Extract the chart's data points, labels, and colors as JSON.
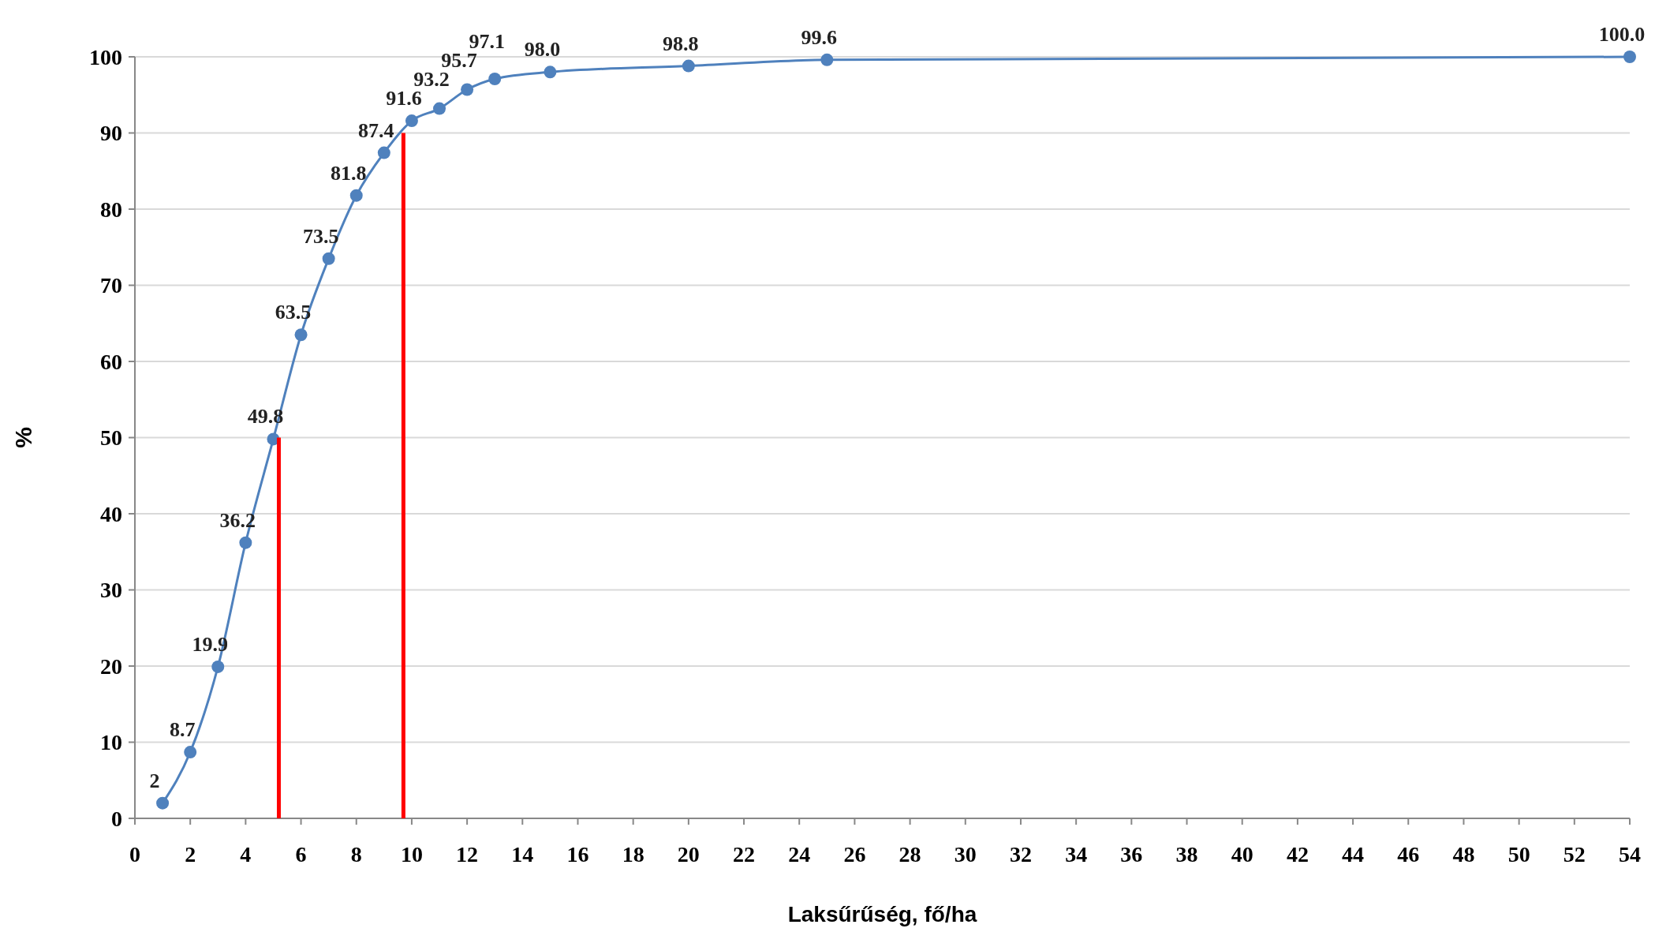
{
  "chart_data": {
    "type": "line",
    "xlabel": "Laksűrűség, fő/ha",
    "ylabel": "%",
    "xlim": [
      0,
      54
    ],
    "xticks": [
      0,
      2,
      4,
      6,
      8,
      10,
      12,
      14,
      16,
      18,
      20,
      22,
      24,
      26,
      28,
      30,
      32,
      34,
      36,
      38,
      40,
      42,
      44,
      46,
      48,
      50,
      52,
      54
    ],
    "ylim": [
      0,
      100
    ],
    "yticks": [
      0,
      10,
      20,
      30,
      40,
      50,
      60,
      70,
      80,
      90,
      100
    ],
    "grid": "y",
    "marker": "circle",
    "series": [
      {
        "color": "#4f81bd",
        "x": [
          1,
          2,
          3,
          4,
          5,
          6,
          7,
          8,
          9,
          10,
          11,
          12,
          13,
          15,
          20,
          25,
          54
        ],
        "values": [
          2,
          8.7,
          19.9,
          36.2,
          49.8,
          63.5,
          73.5,
          81.8,
          87.4,
          91.6,
          93.2,
          95.7,
          97.1,
          98.0,
          98.8,
          99.6,
          100.0
        ],
        "value_labels": [
          "2",
          "8.7",
          "19.9",
          "36.2",
          "49.8",
          "63.5",
          "73.5",
          "81.8",
          "87.4",
          "91.6",
          "93.2",
          "95.7",
          "97.1",
          "98.0",
          "98.8",
          "99.6",
          "100.0"
        ]
      },
      {
        "color": "#ff0000",
        "marker": "none",
        "x": [
          5.2,
          5.2
        ],
        "values": [
          0,
          50
        ]
      },
      {
        "color": "#ff0000",
        "marker": "none",
        "x": [
          9.7,
          9.7
        ],
        "values": [
          0,
          90
        ]
      }
    ]
  }
}
